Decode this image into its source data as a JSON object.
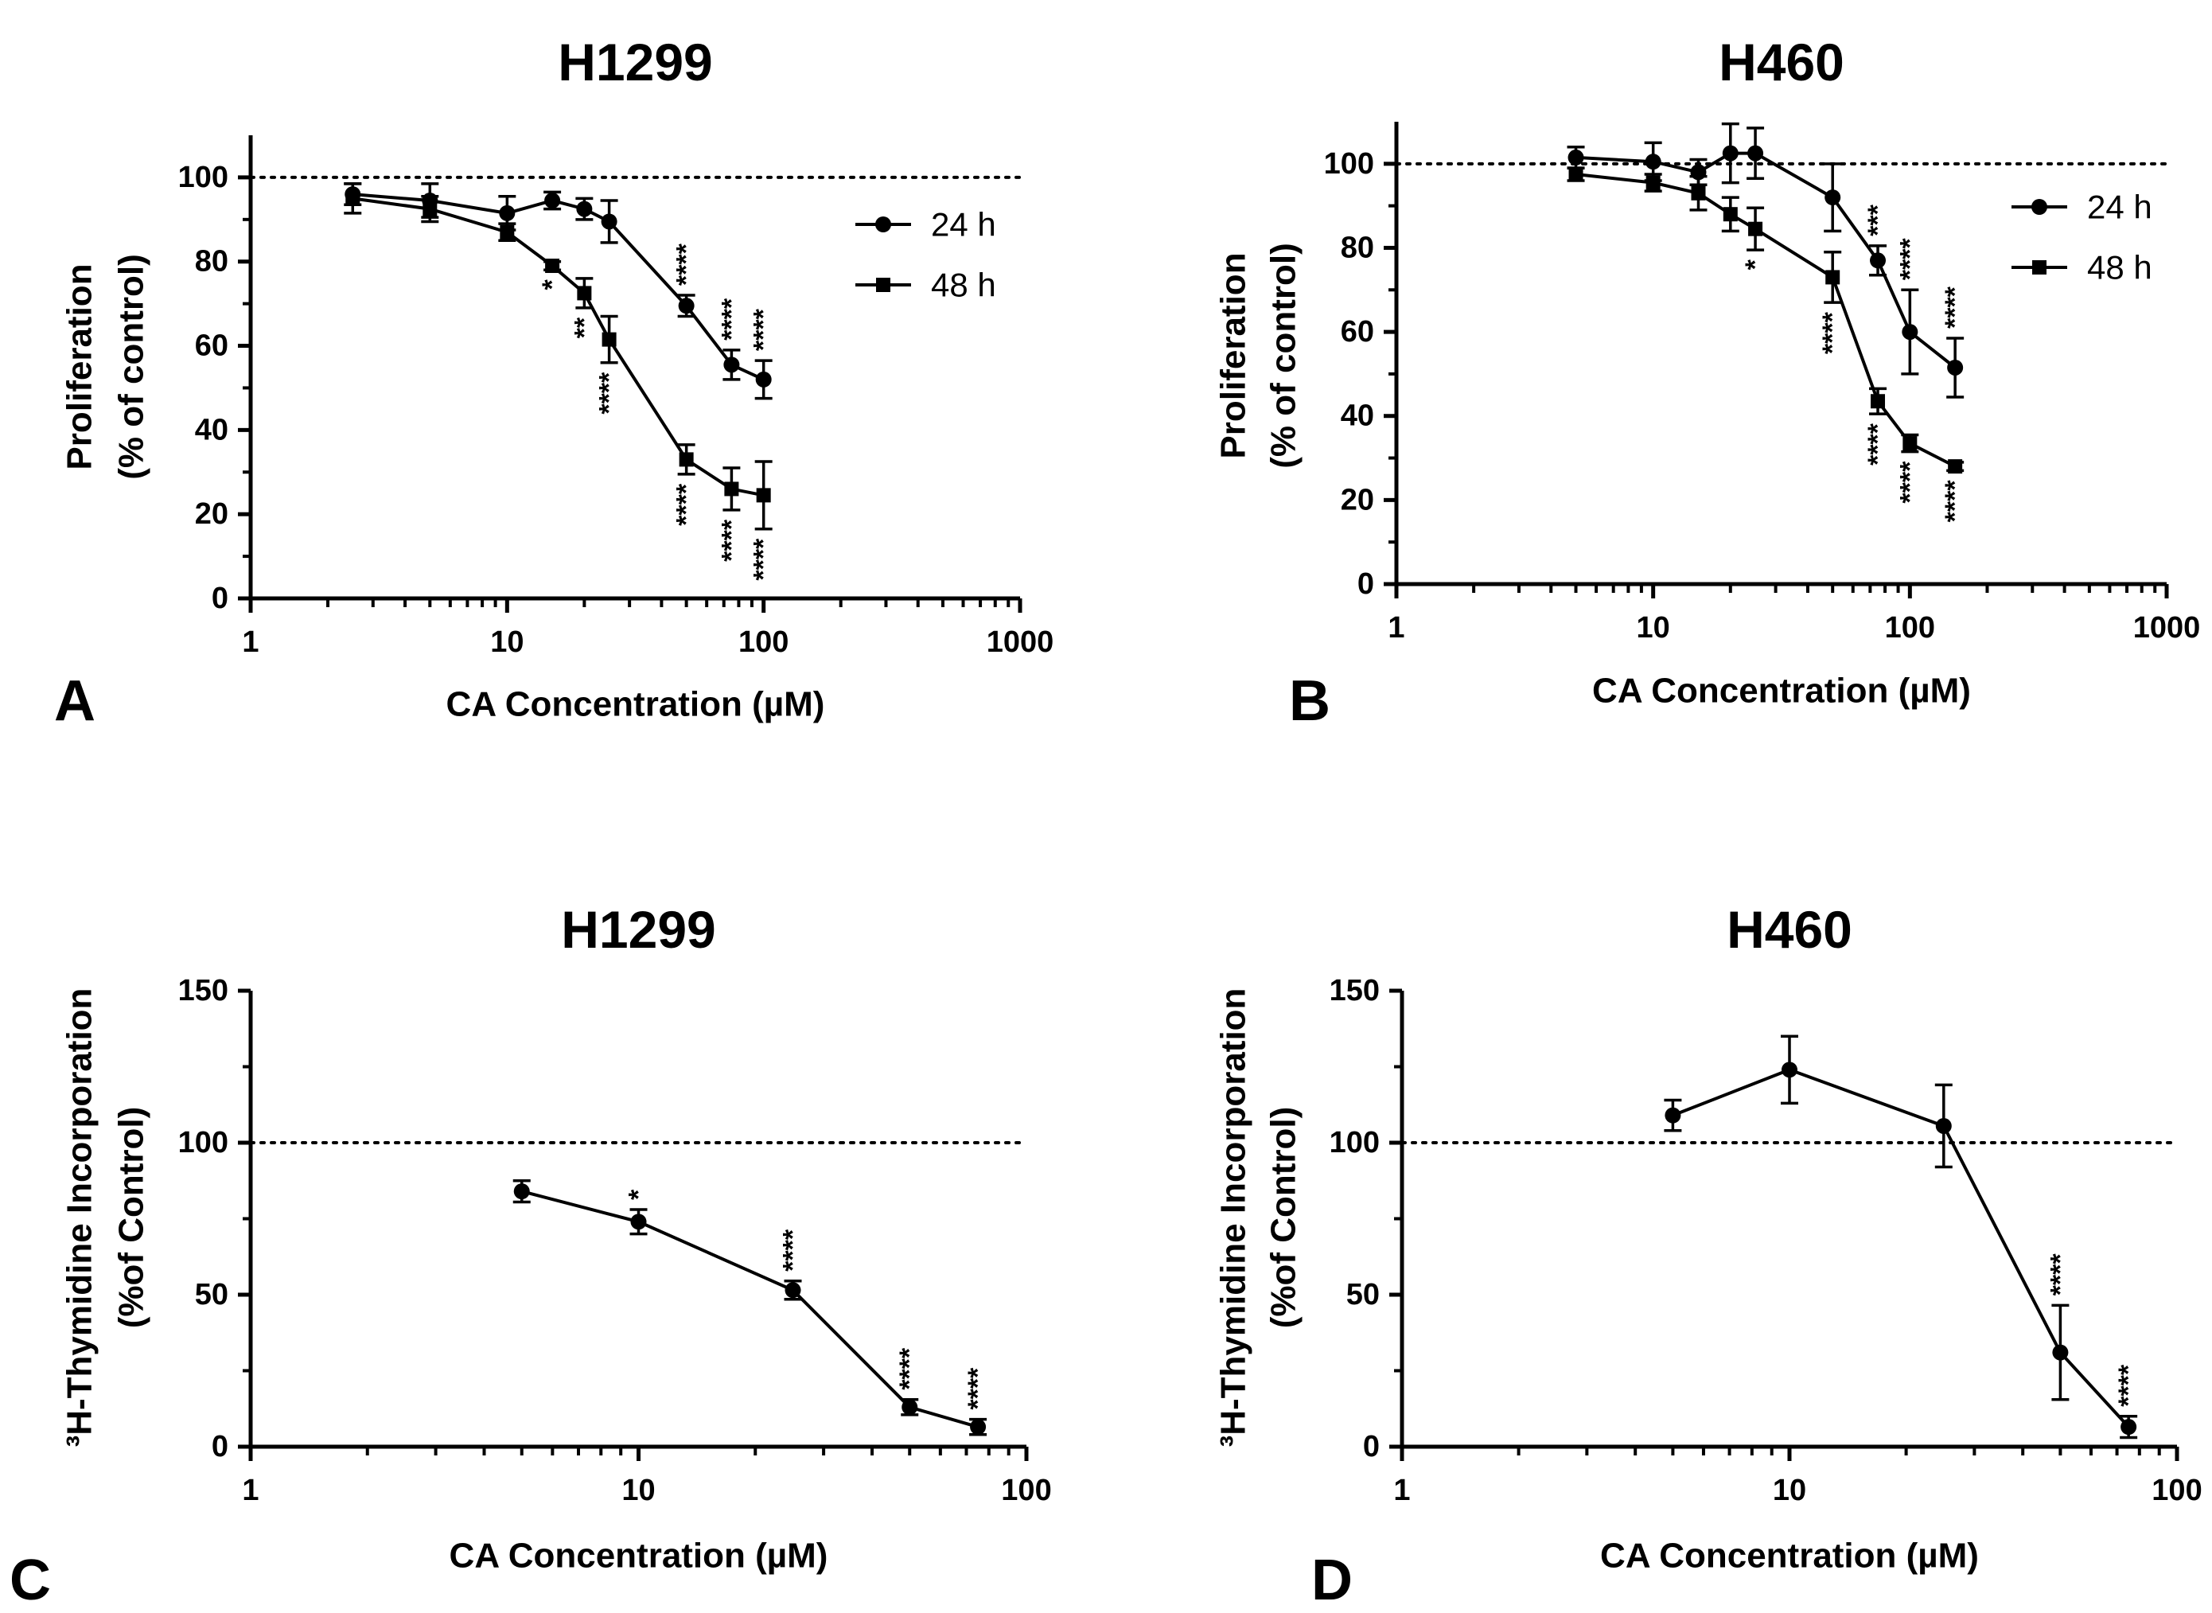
{
  "chart_data": [
    {
      "type": "line",
      "panel": "A",
      "title": "H1299",
      "xlabel": "CA Concentration (µM)",
      "ylabel_lines": [
        "Proliferation",
        "(% of control)"
      ],
      "xscale": "log",
      "xlim": [
        1,
        1000
      ],
      "xticks": [
        1,
        10,
        100,
        1000
      ],
      "xtick_labels": [
        "1",
        "10",
        "100",
        "1000"
      ],
      "ylim": [
        0,
        110
      ],
      "yticks": [
        0,
        20,
        40,
        60,
        80,
        100
      ],
      "ytick_labels": [
        "0",
        "20",
        "40",
        "60",
        "80",
        "100"
      ],
      "reference_line": 100,
      "legend": "top-right",
      "series": [
        {
          "name": "24 h",
          "marker": "circle",
          "x": [
            2.5,
            5,
            10,
            15,
            20,
            25,
            50,
            75,
            100
          ],
          "y": [
            96,
            94.5,
            91.5,
            94.5,
            92.5,
            89.5,
            69.5,
            55.5,
            52
          ],
          "err": [
            2.5,
            4,
            4,
            2,
            2.5,
            5,
            2.5,
            3.5,
            4.5
          ],
          "sig": [
            "",
            "",
            "",
            "",
            "",
            "",
            "****",
            "****",
            "****"
          ]
        },
        {
          "name": "48 h",
          "marker": "square",
          "x": [
            2.5,
            5,
            10,
            15,
            20,
            25,
            50,
            75,
            100
          ],
          "y": [
            95,
            92.5,
            87,
            79,
            72.5,
            61.5,
            33,
            26,
            24.5
          ],
          "err": [
            3.5,
            3,
            2,
            1,
            3.5,
            5.5,
            3.5,
            5,
            8
          ],
          "sig": [
            "",
            "",
            "",
            "*",
            "**",
            "****",
            "****",
            "****",
            "****"
          ]
        }
      ]
    },
    {
      "type": "line",
      "panel": "B",
      "title": "H460",
      "xlabel": "CA Concentration (µM)",
      "ylabel_lines": [
        "Proliferation",
        "(% of control)"
      ],
      "xscale": "log",
      "xlim": [
        1,
        1000
      ],
      "xticks": [
        1,
        10,
        100,
        1000
      ],
      "xtick_labels": [
        "1",
        "10",
        "100",
        "1000"
      ],
      "ylim": [
        0,
        110
      ],
      "yticks": [
        0,
        20,
        40,
        60,
        80,
        100
      ],
      "ytick_labels": [
        "0",
        "20",
        "40",
        "60",
        "80",
        "100"
      ],
      "reference_line": 100,
      "legend": "top-right",
      "series": [
        {
          "name": "24 h",
          "marker": "circle",
          "x": [
            5,
            10,
            15,
            20,
            25,
            50,
            75,
            100,
            150
          ],
          "y": [
            101.5,
            100.5,
            98,
            102.5,
            102.5,
            92,
            77,
            60,
            51.5
          ],
          "err": [
            2.5,
            4.5,
            3,
            7,
            6,
            8,
            3.5,
            10,
            7
          ],
          "sig": [
            "",
            "",
            "",
            "",
            "",
            "",
            "***",
            "****",
            "****"
          ]
        },
        {
          "name": "48 h",
          "marker": "square",
          "x": [
            5,
            10,
            15,
            20,
            25,
            50,
            75,
            100,
            150
          ],
          "y": [
            97.5,
            95.5,
            93,
            88,
            84.5,
            73,
            43.5,
            33.5,
            28
          ],
          "err": [
            1.5,
            2,
            4,
            4,
            5,
            6,
            3,
            2,
            1
          ],
          "sig": [
            "",
            "",
            "",
            "",
            "*",
            "****",
            "****",
            "****",
            "****"
          ]
        }
      ]
    },
    {
      "type": "line",
      "panel": "C",
      "title": "H1299",
      "xlabel": "CA Concentration (µM)",
      "ylabel_lines": [
        "³H-Thymidine Incorporation",
        "(%of  Control)"
      ],
      "xscale": "log",
      "xlim": [
        1,
        100
      ],
      "xticks": [
        1,
        10,
        100
      ],
      "xtick_labels": [
        "1",
        "10",
        "100"
      ],
      "ylim": [
        0,
        150
      ],
      "yticks": [
        0,
        50,
        100,
        150
      ],
      "ytick_labels": [
        "0",
        "50",
        "100",
        "150"
      ],
      "reference_line": 100,
      "series": [
        {
          "name": "",
          "marker": "circle",
          "x": [
            5,
            10,
            25,
            50,
            75
          ],
          "y": [
            84,
            74,
            51.5,
            13,
            6.5
          ],
          "err": [
            3.5,
            4,
            3,
            2.5,
            2.5
          ],
          "sig": [
            "",
            "*",
            "****",
            "****",
            "****"
          ]
        }
      ]
    },
    {
      "type": "line",
      "panel": "D",
      "title": "H460",
      "xlabel": "CA Concentration (µM)",
      "ylabel_lines": [
        "³H-Thymidine Incorporation",
        "(%of  Control)"
      ],
      "xscale": "log",
      "xlim": [
        1,
        100
      ],
      "xticks": [
        1,
        10,
        100
      ],
      "xtick_labels": [
        "1",
        "10",
        "100"
      ],
      "ylim": [
        0,
        150
      ],
      "yticks": [
        0,
        50,
        100,
        150
      ],
      "ytick_labels": [
        "0",
        "50",
        "100",
        "150"
      ],
      "reference_line": 100,
      "series": [
        {
          "name": "",
          "marker": "circle",
          "x": [
            5,
            10,
            25,
            50,
            75
          ],
          "y": [
            109,
            124,
            105.5,
            31,
            6.5
          ],
          "err": [
            5,
            11,
            13.5,
            15.5,
            3.5
          ],
          "sig": [
            "",
            "",
            "",
            "****",
            "****"
          ]
        }
      ]
    }
  ]
}
